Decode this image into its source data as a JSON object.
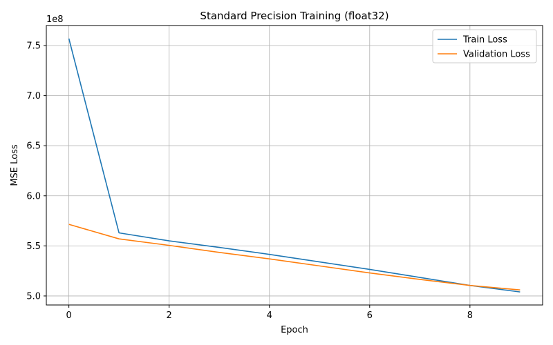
{
  "chart_data": {
    "type": "line",
    "title": "Standard Precision Training (float32)",
    "xlabel": "Epoch",
    "ylabel": "MSE Loss",
    "y_offset_text": "1e8",
    "x": [
      0,
      1,
      2,
      3,
      4,
      5,
      6,
      7,
      8,
      9
    ],
    "xlim": [
      -0.45,
      9.45
    ],
    "ylim": [
      4.91,
      7.7
    ],
    "xticks": [
      0,
      2,
      4,
      6,
      8
    ],
    "yticks": [
      5.0,
      5.5,
      6.0,
      6.5,
      7.0,
      7.5
    ],
    "ytick_labels": [
      "5.0",
      "5.5",
      "6.0",
      "6.5",
      "7.0",
      "7.5"
    ],
    "grid": true,
    "legend_position": "top-right",
    "series": [
      {
        "name": "Train Loss",
        "color": "#1f77b4",
        "values": [
          7.57,
          5.63,
          5.55,
          5.485,
          5.415,
          5.34,
          5.265,
          5.185,
          5.105,
          5.04
        ]
      },
      {
        "name": "Validation Loss",
        "color": "#ff7f0e",
        "values": [
          5.715,
          5.57,
          5.505,
          5.435,
          5.37,
          5.3,
          5.23,
          5.165,
          5.105,
          5.06
        ]
      }
    ]
  }
}
